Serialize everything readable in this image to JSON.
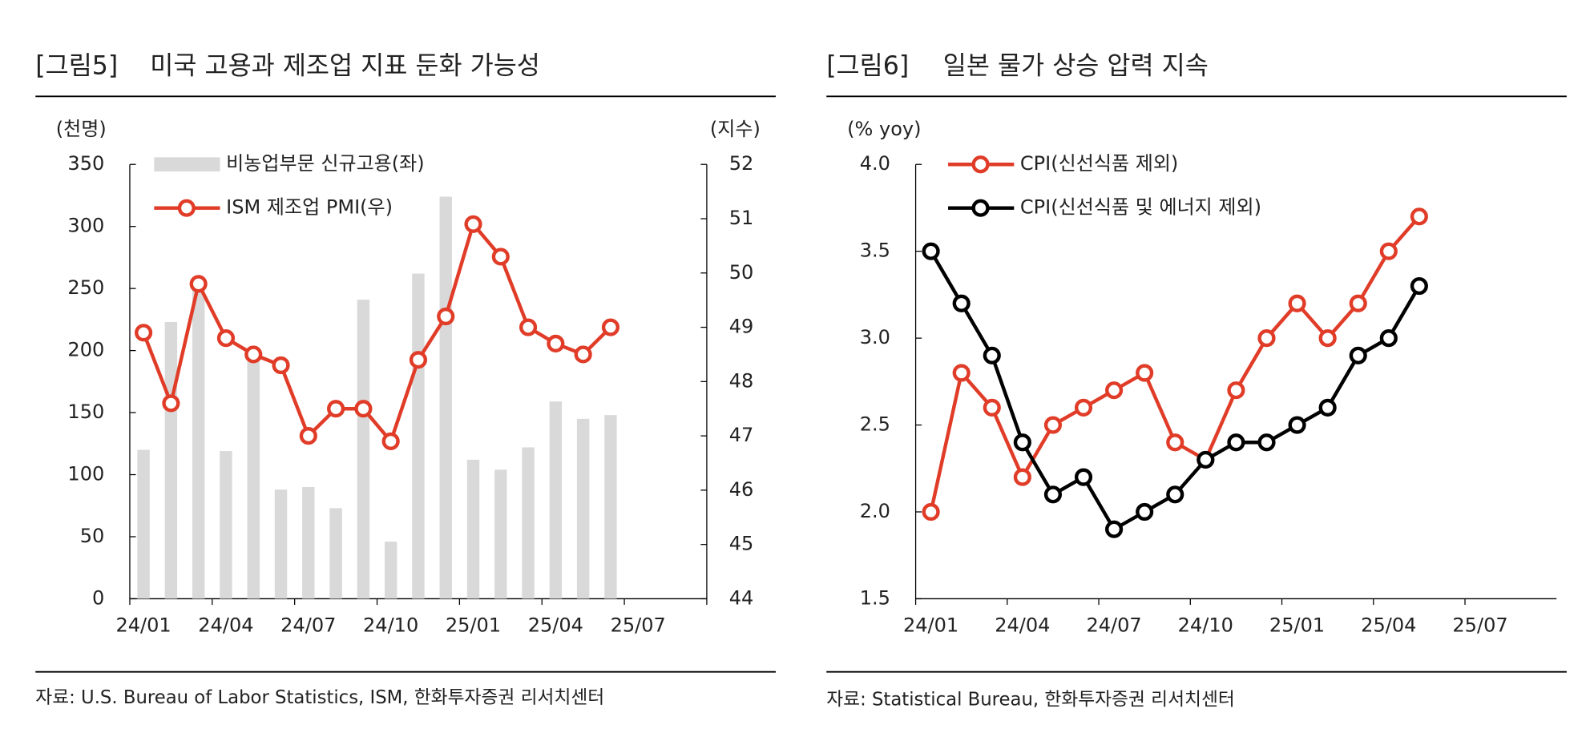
{
  "chart_data": [
    {
      "type": "combo",
      "figure_label": "[그림5]",
      "title": "미국 고용과 제조업 지표 둔화 가능성",
      "y_unit": "(천명)",
      "y2_unit": "(지수)",
      "source": "자료: U.S. Bureau of Labor Statistics, ISM, 한화투자증권 리서치센터",
      "categories": [
        "24/01",
        null,
        null,
        "24/04",
        null,
        null,
        "24/07",
        null,
        null,
        "24/10",
        null,
        null,
        "25/01",
        null,
        null,
        "25/04",
        null,
        null,
        "25/07",
        null,
        null
      ],
      "series": [
        {
          "name": "비농업부문 신규고용(좌)",
          "type": "bar",
          "color": "#d9d9d9",
          "values": [
            120,
            223,
            255,
            119,
            200,
            88,
            90,
            73,
            241,
            46,
            262,
            324,
            112,
            104,
            122,
            159,
            145,
            148,
            null,
            null,
            null
          ]
        },
        {
          "name": "ISM 제조업 PMI(우)",
          "type": "line",
          "axis": "y2",
          "color": "#e03c28",
          "values": [
            48.9,
            47.6,
            49.8,
            48.8,
            48.5,
            48.3,
            47.0,
            47.5,
            47.5,
            46.9,
            48.4,
            49.2,
            50.9,
            50.3,
            49.0,
            48.7,
            48.5,
            49.0,
            null,
            null,
            null
          ]
        }
      ],
      "ylim": [
        0,
        350
      ],
      "yticks": [
        0,
        50,
        100,
        150,
        200,
        250,
        300,
        350
      ],
      "y2lim": [
        44,
        52
      ],
      "y2ticks": [
        44,
        45,
        46,
        47,
        48,
        49,
        50,
        51,
        52
      ],
      "legend": "upper left"
    },
    {
      "type": "line",
      "figure_label": "[그림6]",
      "title": "일본 물가 상승 압력 지속",
      "y_unit": "(% yoy)",
      "source": "자료: Statistical Bureau, 한화투자증권 리서치센터",
      "categories": [
        "24/01",
        null,
        null,
        "24/04",
        null,
        null,
        "24/07",
        null,
        null,
        "24/10",
        null,
        null,
        "25/01",
        null,
        null,
        "25/04",
        null,
        null,
        "25/07",
        null,
        null
      ],
      "series": [
        {
          "name": "CPI(신선식품 제외)",
          "type": "line",
          "color": "#e03c28",
          "values": [
            2.0,
            2.8,
            2.6,
            2.2,
            2.5,
            2.6,
            2.7,
            2.8,
            2.4,
            2.3,
            2.7,
            3.0,
            3.2,
            3.0,
            3.2,
            3.5,
            3.7,
            null,
            null,
            null,
            null
          ]
        },
        {
          "name": "CPI(신선식품 및 에너지 제외)",
          "type": "line",
          "color": "#000000",
          "values": [
            3.5,
            3.2,
            2.9,
            2.4,
            2.1,
            2.2,
            1.9,
            2.0,
            2.1,
            2.3,
            2.4,
            2.4,
            2.5,
            2.6,
            2.9,
            3.0,
            3.3,
            null,
            null,
            null,
            null
          ]
        }
      ],
      "ylim": [
        1.5,
        4.0
      ],
      "yticks": [
        1.5,
        {
          "value": 2.0,
          "label": "2.0"
        },
        2.5,
        {
          "value": 3.0,
          "label": "3.0"
        },
        3.5,
        {
          "value": 4.0,
          "label": "4.0"
        }
      ],
      "legend": "upper left"
    }
  ]
}
